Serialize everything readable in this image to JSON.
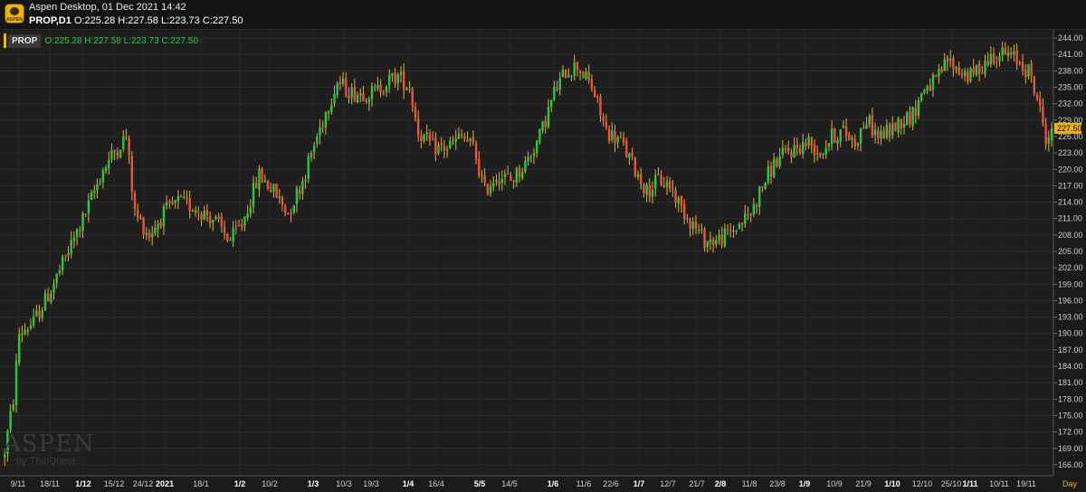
{
  "header": {
    "logo_text": "ASPEN",
    "app_title": "Aspen Desktop, 01 Dec 2021 14:42",
    "symbol_interval": "PROP,D1",
    "ohlc": "O:225.28 H:227.58 L:223.73 C:227.50"
  },
  "legend": {
    "symbol": "PROP",
    "ohlc": "O:225.28 H:227.58 L:223.73 C:227.50"
  },
  "watermark": {
    "main": "ASPEN",
    "sub": "by ThaiQuest"
  },
  "interval_label": "Day",
  "colors": {
    "up": "#27c93f",
    "down": "#f0503c",
    "wick": "#e0b030",
    "last_price_tag": "#f0b400"
  },
  "chart_data": {
    "type": "candlestick",
    "y_ticks": [
      "244.00",
      "241.00",
      "238.00",
      "235.00",
      "232.00",
      "229.00",
      "226.00",
      "223.00",
      "220.00",
      "217.00",
      "214.00",
      "211.00",
      "208.00",
      "205.00",
      "202.00",
      "199.00",
      "196.00",
      "193.00",
      "190.00",
      "187.00",
      "184.00",
      "181.00",
      "178.00",
      "175.00",
      "172.00",
      "169.00",
      "166.00"
    ],
    "ylim": [
      164.0,
      245.5
    ],
    "last_price": "227.50",
    "x_labels": [
      {
        "label": "9/11",
        "bold": false
      },
      {
        "label": "18/11",
        "bold": false
      },
      {
        "label": "1/12",
        "bold": true
      },
      {
        "label": "15/12",
        "bold": false
      },
      {
        "label": "24/12",
        "bold": false
      },
      {
        "label": "2021",
        "bold": true
      },
      {
        "label": "18/1",
        "bold": false
      },
      {
        "label": "1/2",
        "bold": true
      },
      {
        "label": "10/2",
        "bold": false
      },
      {
        "label": "1/3",
        "bold": true
      },
      {
        "label": "10/3",
        "bold": false
      },
      {
        "label": "19/3",
        "bold": false
      },
      {
        "label": "1/4",
        "bold": true
      },
      {
        "label": "16/4",
        "bold": false
      },
      {
        "label": "5/5",
        "bold": true
      },
      {
        "label": "14/5",
        "bold": false
      },
      {
        "label": "1/6",
        "bold": true
      },
      {
        "label": "11/6",
        "bold": false
      },
      {
        "label": "22/6",
        "bold": false
      },
      {
        "label": "1/7",
        "bold": true
      },
      {
        "label": "12/7",
        "bold": false
      },
      {
        "label": "21/7",
        "bold": false
      },
      {
        "label": "2/8",
        "bold": true
      },
      {
        "label": "11/8",
        "bold": false
      },
      {
        "label": "23/8",
        "bold": false
      },
      {
        "label": "1/9",
        "bold": true
      },
      {
        "label": "10/9",
        "bold": false
      },
      {
        "label": "21/9",
        "bold": false
      },
      {
        "label": "1/10",
        "bold": true
      },
      {
        "label": "12/10",
        "bold": false
      },
      {
        "label": "25/10",
        "bold": false
      },
      {
        "label": "1/11",
        "bold": true
      },
      {
        "label": "10/11",
        "bold": false
      },
      {
        "label": "19/11",
        "bold": false
      }
    ],
    "trend": [
      [
        0,
        168.5
      ],
      [
        3,
        178
      ],
      [
        5,
        190
      ],
      [
        10,
        192
      ],
      [
        16,
        198
      ],
      [
        22,
        205
      ],
      [
        28,
        212
      ],
      [
        34,
        220
      ],
      [
        39,
        224
      ],
      [
        42,
        226
      ],
      [
        45,
        212
      ],
      [
        50,
        208
      ],
      [
        55,
        212
      ],
      [
        60,
        214
      ],
      [
        66,
        213
      ],
      [
        72,
        211
      ],
      [
        78,
        207
      ],
      [
        82,
        210
      ],
      [
        88,
        219
      ],
      [
        93,
        216
      ],
      [
        98,
        212
      ],
      [
        103,
        218
      ],
      [
        108,
        226
      ],
      [
        112,
        232
      ],
      [
        115,
        236
      ],
      [
        120,
        234
      ],
      [
        128,
        234
      ],
      [
        132,
        236
      ],
      [
        136,
        237
      ],
      [
        140,
        235
      ],
      [
        143,
        227
      ],
      [
        148,
        224
      ],
      [
        153,
        224
      ],
      [
        158,
        226
      ],
      [
        162,
        224
      ],
      [
        166,
        216
      ],
      [
        170,
        219
      ],
      [
        175,
        218
      ],
      [
        180,
        221
      ],
      [
        185,
        226
      ],
      [
        190,
        234
      ],
      [
        194,
        238
      ],
      [
        198,
        239
      ],
      [
        203,
        235
      ],
      [
        208,
        227
      ],
      [
        213,
        225
      ],
      [
        218,
        220
      ],
      [
        222,
        216
      ],
      [
        226,
        218
      ],
      [
        230,
        217
      ],
      [
        234,
        213
      ],
      [
        238,
        210
      ],
      [
        242,
        207
      ],
      [
        246,
        207
      ],
      [
        250,
        208
      ],
      [
        254,
        210
      ],
      [
        258,
        212
      ],
      [
        262,
        217
      ],
      [
        266,
        221
      ],
      [
        270,
        223
      ],
      [
        274,
        224
      ],
      [
        278,
        225
      ],
      [
        282,
        223
      ],
      [
        286,
        226
      ],
      [
        290,
        227
      ],
      [
        294,
        225
      ],
      [
        298,
        229
      ],
      [
        302,
        226
      ],
      [
        306,
        227
      ],
      [
        310,
        229
      ],
      [
        314,
        230
      ],
      [
        318,
        235
      ],
      [
        322,
        236
      ],
      [
        326,
        240
      ],
      [
        330,
        238
      ],
      [
        334,
        237
      ],
      [
        338,
        239
      ],
      [
        342,
        241
      ],
      [
        346,
        241
      ],
      [
        350,
        240
      ],
      [
        354,
        238
      ],
      [
        357,
        233
      ],
      [
        360,
        226
      ],
      [
        362,
        226.5
      ]
    ]
  }
}
